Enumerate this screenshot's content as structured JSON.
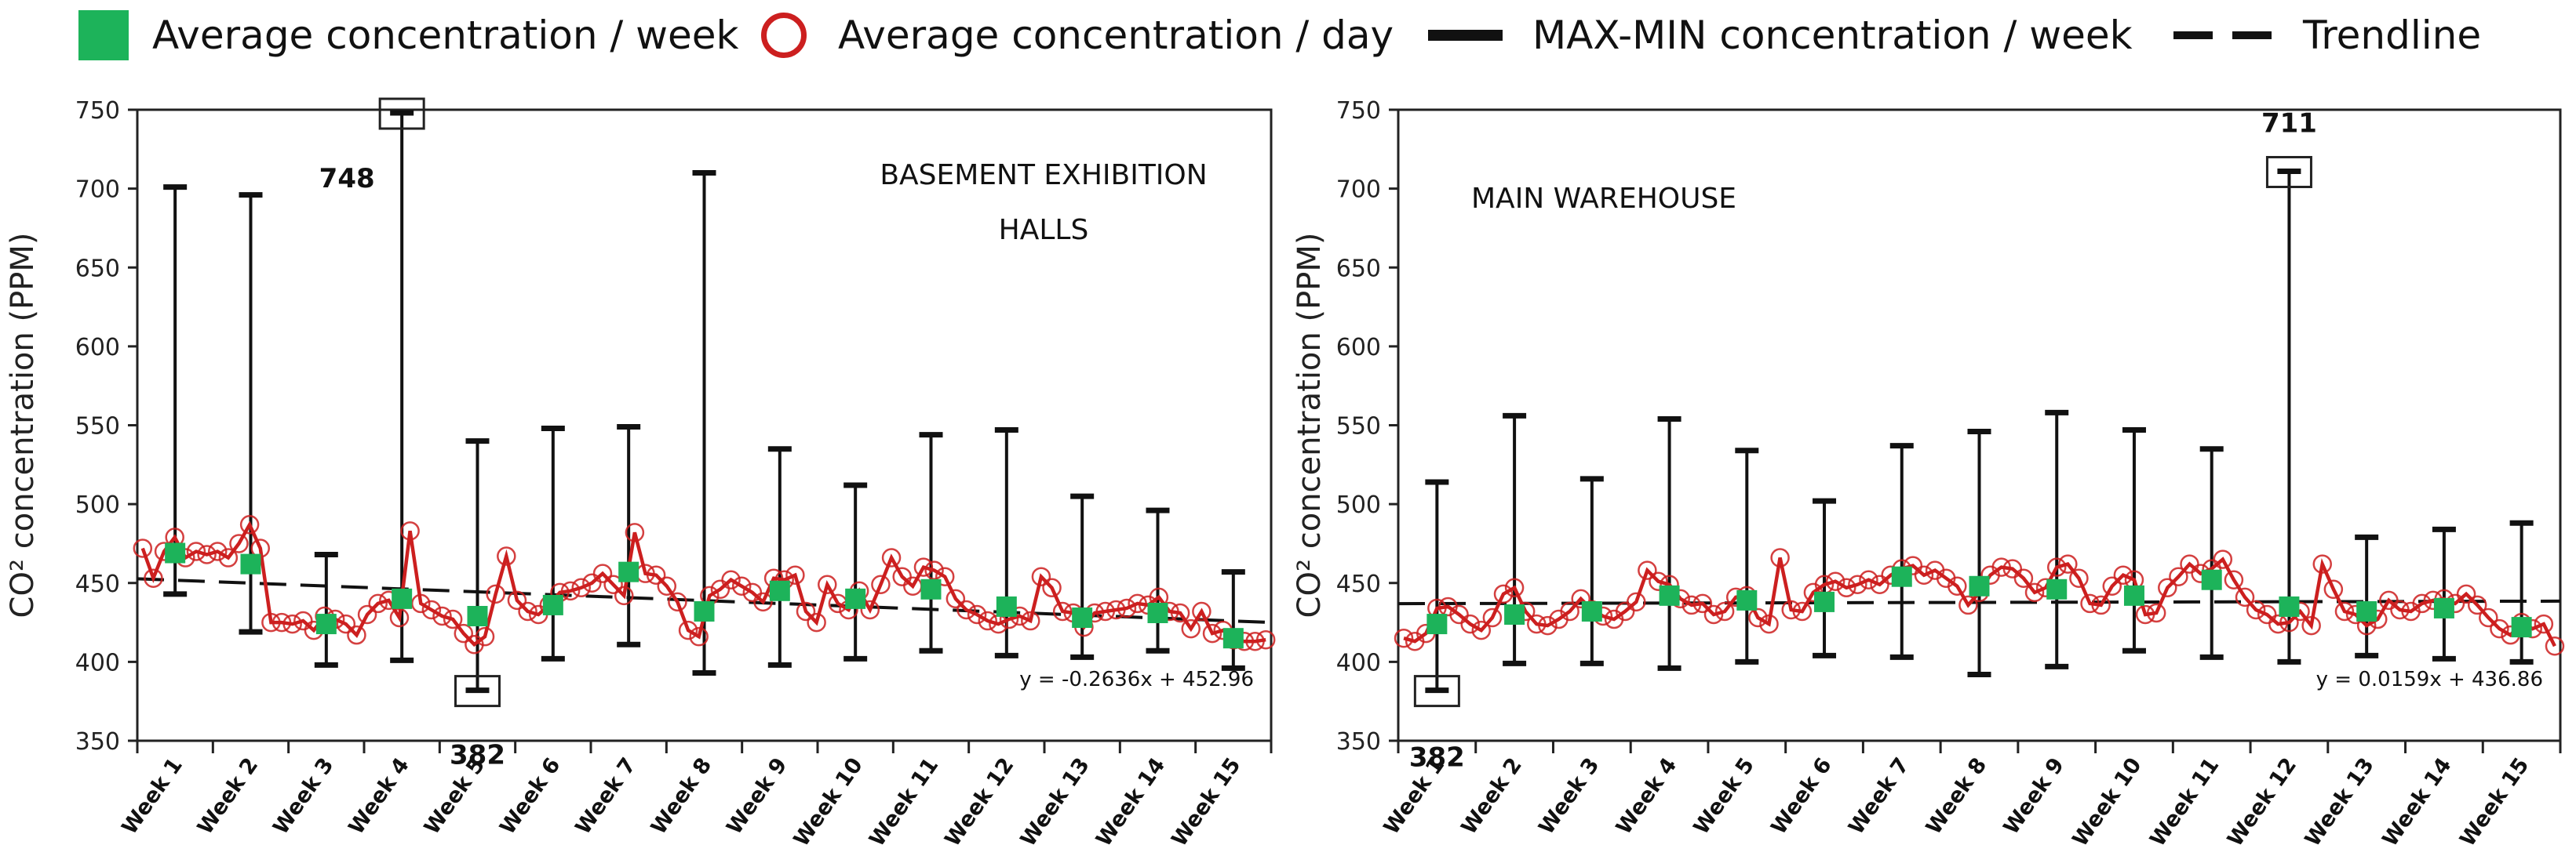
{
  "colors": {
    "week_avg": "#1db35a",
    "day_avg": "#cc1f1f",
    "range": "#111111",
    "trend": "#111111"
  },
  "legend": {
    "week_avg": "Average concentration / week",
    "day_avg": "Average concentration / day",
    "range": "MAX-MIN concentration / week",
    "trend": "Trendline"
  },
  "chart_data": [
    {
      "type": "line",
      "title": "BASEMENT EXHIBITION HALLS",
      "title_lines": [
        "BASEMENT EXHIBITION",
        "HALLS"
      ],
      "ylabel": "CO² concentration (PPM)",
      "ylim": [
        350,
        750
      ],
      "yticks": [
        350,
        400,
        450,
        500,
        550,
        600,
        650,
        700,
        750
      ],
      "categories": [
        "Week 1",
        "Week 2",
        "Week 3",
        "Week 4",
        "Week 5",
        "Week 6",
        "Week 7",
        "Week 8",
        "Week 9",
        "Week 10",
        "Week 11",
        "Week 12",
        "Week 13",
        "Week 14",
        "Week 15"
      ],
      "weekly_avg": [
        469,
        462,
        424,
        440,
        429,
        436,
        457,
        432,
        445,
        440,
        446,
        435,
        428,
        431,
        415
      ],
      "weekly_max": [
        701,
        696,
        468,
        748,
        540,
        548,
        549,
        710,
        535,
        512,
        544,
        547,
        505,
        496,
        457
      ],
      "weekly_min": [
        443,
        419,
        398,
        401,
        382,
        402,
        411,
        393,
        398,
        402,
        407,
        404,
        403,
        407,
        396
      ],
      "daily_avg": [
        472,
        453,
        470,
        479,
        466,
        470,
        468,
        470,
        466,
        475,
        487,
        472,
        425,
        425,
        424,
        426,
        420,
        429,
        427,
        424,
        417,
        430,
        437,
        439,
        428,
        483,
        437,
        433,
        429,
        427,
        418,
        411,
        416,
        443,
        467,
        439,
        432,
        430,
        436,
        444,
        445,
        447,
        450,
        456,
        449,
        442,
        482,
        456,
        455,
        448,
        438,
        420,
        416,
        442,
        446,
        452,
        448,
        444,
        438,
        453,
        452,
        455,
        432,
        425,
        449,
        437,
        433,
        445,
        433,
        449,
        466,
        454,
        448,
        460,
        458,
        454,
        440,
        433,
        430,
        426,
        424,
        427,
        429,
        426,
        454,
        447,
        432,
        431,
        422,
        431,
        432,
        433,
        434,
        437,
        436,
        441,
        432,
        431,
        421,
        432,
        418,
        420,
        414,
        413,
        413,
        414
      ],
      "trendline": {
        "equation": "y = -0.2636x + 452.96",
        "start": 452.7,
        "end": 425.0
      },
      "annotations": [
        {
          "text": "748",
          "week": 4,
          "value": 748
        },
        {
          "text": "382",
          "week": 5,
          "value": 382
        }
      ]
    },
    {
      "type": "line",
      "title": "MAIN WAREHOUSE",
      "title_lines": [
        "MAIN WAREHOUSE"
      ],
      "ylabel": "CO² concentration (PPM)",
      "ylim": [
        350,
        750
      ],
      "yticks": [
        350,
        400,
        450,
        500,
        550,
        600,
        650,
        700,
        750
      ],
      "categories": [
        "Week 1",
        "Week 2",
        "Week 3",
        "Week 4",
        "Week 5",
        "Week 6",
        "Week 7",
        "Week 8",
        "Week 9",
        "Week 10",
        "Week 11",
        "Week 12",
        "Week 13",
        "Week 14",
        "Week 15"
      ],
      "weekly_avg": [
        424,
        430,
        432,
        442,
        439,
        438,
        454,
        448,
        446,
        442,
        452,
        435,
        432,
        434,
        422
      ],
      "weekly_max": [
        514,
        556,
        516,
        554,
        534,
        502,
        537,
        546,
        558,
        547,
        535,
        711,
        479,
        484,
        488
      ],
      "weekly_min": [
        382,
        399,
        399,
        396,
        400,
        404,
        403,
        392,
        397,
        407,
        403,
        400,
        404,
        402,
        400
      ],
      "daily_avg": [
        415,
        413,
        418,
        434,
        435,
        430,
        424,
        420,
        428,
        443,
        447,
        432,
        424,
        423,
        427,
        432,
        440,
        433,
        429,
        427,
        432,
        438,
        458,
        451,
        449,
        440,
        436,
        437,
        430,
        432,
        441,
        442,
        428,
        424,
        466,
        433,
        432,
        444,
        449,
        451,
        447,
        449,
        452,
        449,
        455,
        459,
        461,
        455,
        458,
        453,
        448,
        436,
        444,
        455,
        460,
        459,
        453,
        444,
        447,
        460,
        462,
        453,
        437,
        436,
        448,
        455,
        452,
        430,
        431,
        447,
        454,
        462,
        456,
        459,
        465,
        452,
        441,
        433,
        430,
        424,
        425,
        432,
        423,
        462,
        446,
        432,
        430,
        423,
        427,
        439,
        433,
        432,
        437,
        439,
        440,
        437,
        443,
        436,
        428,
        421,
        417,
        425,
        421,
        424,
        410
      ],
      "trendline": {
        "equation": "y = 0.0159x + 436.86",
        "start": 436.9,
        "end": 438.5
      },
      "annotations": [
        {
          "text": "711",
          "week": 12,
          "value": 711
        },
        {
          "text": "382",
          "week": 1,
          "value": 382
        }
      ]
    }
  ]
}
